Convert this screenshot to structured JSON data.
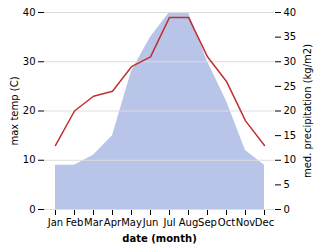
{
  "chart_data": {
    "type": "line",
    "categories": [
      "Jan",
      "Feb",
      "Mar",
      "Apr",
      "May",
      "Jun",
      "Jul",
      "Aug",
      "Sep",
      "Oct",
      "Nov",
      "Dec"
    ],
    "xlabel": "date (month)",
    "ylabel": "max temp (C)",
    "y2label": "med. precipitation (kg/m2)",
    "ylim": [
      0,
      40
    ],
    "yticks": [
      0,
      10,
      20,
      30,
      40
    ],
    "y2lim": [
      0,
      40
    ],
    "y2ticks": [
      0,
      5,
      10,
      15,
      20,
      25,
      30,
      35,
      40
    ],
    "grid": true,
    "series": [
      {
        "type": "area",
        "axis": "y2",
        "color": "#b8c4e8",
        "values": [
          9,
          9,
          11,
          15,
          28,
          35,
          40,
          40,
          30,
          22,
          12,
          9
        ]
      },
      {
        "type": "line",
        "color": "#c03030",
        "values": [
          13,
          20,
          23,
          24,
          29,
          31,
          39,
          39,
          31,
          26,
          18,
          13
        ]
      }
    ]
  }
}
